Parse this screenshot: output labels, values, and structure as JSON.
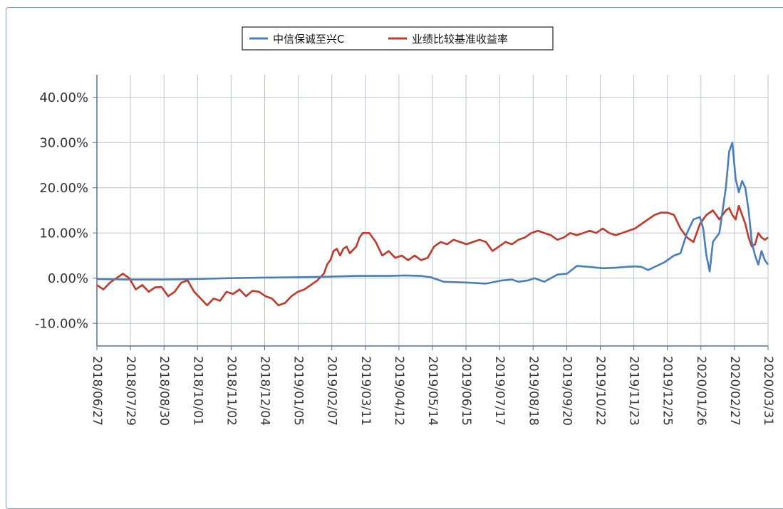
{
  "chart_data": {
    "type": "line",
    "title": "",
    "xlabel": "",
    "ylabel": "",
    "x_ticks": [
      "2018/06/27",
      "2018/07/29",
      "2018/08/30",
      "2018/10/01",
      "2018/11/02",
      "2018/12/04",
      "2019/01/05",
      "2019/02/07",
      "2019/03/11",
      "2019/04/12",
      "2019/05/14",
      "2019/06/15",
      "2019/07/17",
      "2019/08/18",
      "2019/09/20",
      "2019/10/22",
      "2019/11/23",
      "2019/12/25",
      "2020/01/26",
      "2020/02/27",
      "2020/03/31"
    ],
    "y_ticks": [
      "-10.00%",
      "0.00%",
      "10.00%",
      "20.00%",
      "30.00%",
      "40.00%"
    ],
    "ylim": [
      -15,
      45
    ],
    "grid": true,
    "legend_position": "top-center",
    "series": [
      {
        "name": "中信保诚至兴C",
        "color": "#4a7ebb",
        "values": [
          [
            0,
            -0.2
          ],
          [
            10,
            -0.3
          ],
          [
            20,
            -0.3
          ],
          [
            30,
            -0.2
          ],
          [
            40,
            0
          ],
          [
            50,
            0.1
          ],
          [
            60,
            0.2
          ],
          [
            70,
            0.3
          ],
          [
            80,
            0.5
          ],
          [
            90,
            0.5
          ],
          [
            95,
            0.6
          ],
          [
            100,
            0.5
          ],
          [
            103,
            0.2
          ],
          [
            107,
            -0.8
          ],
          [
            115,
            -1.0
          ],
          [
            120,
            -1.2
          ],
          [
            125,
            -0.5
          ],
          [
            128,
            -0.3
          ],
          [
            130,
            -0.8
          ],
          [
            133,
            -0.5
          ],
          [
            135,
            0
          ],
          [
            138,
            -0.8
          ],
          [
            142,
            0.8
          ],
          [
            145,
            1.0
          ],
          [
            148,
            2.7
          ],
          [
            152,
            2.5
          ],
          [
            156,
            2.2
          ],
          [
            160,
            2.3
          ],
          [
            163,
            2.5
          ],
          [
            166,
            2.6
          ],
          [
            168,
            2.5
          ],
          [
            170,
            1.8
          ],
          [
            175,
            3.5
          ],
          [
            178,
            5
          ],
          [
            180,
            5.5
          ],
          [
            182,
            10
          ],
          [
            184,
            13
          ],
          [
            186,
            13.5
          ],
          [
            187,
            11
          ],
          [
            188,
            5
          ],
          [
            189,
            1.5
          ],
          [
            190,
            8
          ],
          [
            192,
            10
          ],
          [
            194,
            20
          ],
          [
            195,
            28
          ],
          [
            196,
            30
          ],
          [
            197,
            22
          ],
          [
            198,
            19
          ],
          [
            199,
            21.5
          ],
          [
            200,
            20
          ],
          [
            201,
            15
          ],
          [
            202,
            8
          ],
          [
            203,
            5
          ],
          [
            204,
            3
          ],
          [
            205,
            6
          ],
          [
            206,
            4
          ],
          [
            207,
            3
          ]
        ]
      },
      {
        "name": "业绩比较基准收益率",
        "color": "#c0392b",
        "values": [
          [
            0,
            -1.5
          ],
          [
            2,
            -2.5
          ],
          [
            4,
            -1
          ],
          [
            6,
            0
          ],
          [
            8,
            1
          ],
          [
            10,
            0
          ],
          [
            12,
            -2.5
          ],
          [
            14,
            -1.5
          ],
          [
            16,
            -3
          ],
          [
            18,
            -2
          ],
          [
            20,
            -2
          ],
          [
            22,
            -4
          ],
          [
            24,
            -3
          ],
          [
            26,
            -1
          ],
          [
            28,
            -0.5
          ],
          [
            30,
            -3
          ],
          [
            32,
            -4.5
          ],
          [
            34,
            -6
          ],
          [
            36,
            -4.5
          ],
          [
            38,
            -5
          ],
          [
            40,
            -3
          ],
          [
            42,
            -3.5
          ],
          [
            44,
            -2.5
          ],
          [
            46,
            -4
          ],
          [
            48,
            -2.8
          ],
          [
            50,
            -3
          ],
          [
            52,
            -4
          ],
          [
            54,
            -4.5
          ],
          [
            56,
            -6
          ],
          [
            58,
            -5.5
          ],
          [
            60,
            -4
          ],
          [
            62,
            -3
          ],
          [
            64,
            -2.5
          ],
          [
            66,
            -1.5
          ],
          [
            68,
            -0.5
          ],
          [
            70,
            1
          ],
          [
            71,
            3
          ],
          [
            72,
            4
          ],
          [
            73,
            6
          ],
          [
            74,
            6.5
          ],
          [
            75,
            5
          ],
          [
            76,
            6.5
          ],
          [
            77,
            7
          ],
          [
            78,
            5.5
          ],
          [
            80,
            7
          ],
          [
            81,
            9
          ],
          [
            82,
            10
          ],
          [
            84,
            10
          ],
          [
            86,
            8
          ],
          [
            88,
            5
          ],
          [
            90,
            6
          ],
          [
            92,
            4.5
          ],
          [
            94,
            5
          ],
          [
            96,
            4
          ],
          [
            98,
            5
          ],
          [
            100,
            4
          ],
          [
            102,
            4.5
          ],
          [
            104,
            7
          ],
          [
            106,
            8
          ],
          [
            108,
            7.5
          ],
          [
            110,
            8.5
          ],
          [
            112,
            8
          ],
          [
            114,
            7.5
          ],
          [
            116,
            8
          ],
          [
            118,
            8.5
          ],
          [
            120,
            8
          ],
          [
            122,
            6
          ],
          [
            124,
            7
          ],
          [
            126,
            8
          ],
          [
            128,
            7.5
          ],
          [
            130,
            8.5
          ],
          [
            132,
            9
          ],
          [
            134,
            10
          ],
          [
            136,
            10.5
          ],
          [
            138,
            10
          ],
          [
            140,
            9.5
          ],
          [
            142,
            8.5
          ],
          [
            144,
            9
          ],
          [
            146,
            10
          ],
          [
            148,
            9.5
          ],
          [
            150,
            10
          ],
          [
            152,
            10.5
          ],
          [
            154,
            10
          ],
          [
            156,
            11
          ],
          [
            158,
            10
          ],
          [
            160,
            9.5
          ],
          [
            162,
            10
          ],
          [
            164,
            10.5
          ],
          [
            166,
            11
          ],
          [
            168,
            12
          ],
          [
            170,
            13
          ],
          [
            172,
            14
          ],
          [
            174,
            14.5
          ],
          [
            176,
            14.5
          ],
          [
            178,
            14
          ],
          [
            180,
            11
          ],
          [
            182,
            9
          ],
          [
            184,
            8
          ],
          [
            185,
            10
          ],
          [
            186,
            12
          ],
          [
            187,
            13
          ],
          [
            188,
            14
          ],
          [
            190,
            15
          ],
          [
            191,
            14
          ],
          [
            192,
            13
          ],
          [
            193,
            14
          ],
          [
            194,
            15
          ],
          [
            195,
            15.5
          ],
          [
            196,
            14
          ],
          [
            197,
            13
          ],
          [
            198,
            16
          ],
          [
            199,
            14
          ],
          [
            200,
            12
          ],
          [
            201,
            9
          ],
          [
            202,
            7
          ],
          [
            203,
            7.5
          ],
          [
            204,
            10
          ],
          [
            205,
            9
          ],
          [
            206,
            8.5
          ],
          [
            207,
            9
          ]
        ]
      }
    ]
  }
}
